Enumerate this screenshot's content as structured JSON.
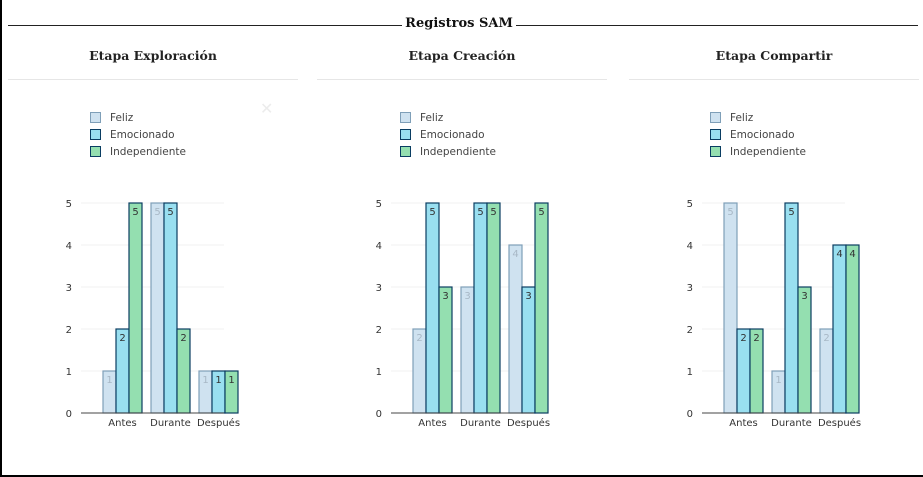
{
  "title": "Registros SAM",
  "close_icon": "close-icon",
  "legend": [
    {
      "name": "Feliz",
      "fill": "#cfe2f0",
      "stroke": "#7f9fb8"
    },
    {
      "name": "Emocionado",
      "fill": "#99dff0",
      "stroke": "#0a3d62"
    },
    {
      "name": "Independiente",
      "fill": "#94dfb0",
      "stroke": "#0a3d62"
    }
  ],
  "label_colors": [
    "#a8b8c6",
    "#333333",
    "#333333"
  ],
  "panels": [
    {
      "title": "Etapa Exploración"
    },
    {
      "title": "Etapa Creación"
    },
    {
      "title": "Etapa Compartir"
    }
  ],
  "chart_data": [
    {
      "type": "bar",
      "title": "Etapa Exploración",
      "categories": [
        "Antes",
        "Durante",
        "Después"
      ],
      "series": [
        {
          "name": "Feliz",
          "values": [
            1,
            5,
            1
          ]
        },
        {
          "name": "Emocionado",
          "values": [
            2,
            5,
            1
          ]
        },
        {
          "name": "Independiente",
          "values": [
            5,
            2,
            1
          ]
        }
      ],
      "yticks": [
        "0",
        "1",
        "2",
        "3",
        "4",
        "5"
      ],
      "ylim": [
        0,
        5
      ],
      "legend": "top-left"
    },
    {
      "type": "bar",
      "title": "Etapa Creación",
      "categories": [
        "Antes",
        "Durante",
        "Después"
      ],
      "series": [
        {
          "name": "Feliz",
          "values": [
            2,
            3,
            4
          ]
        },
        {
          "name": "Emocionado",
          "values": [
            5,
            5,
            3
          ]
        },
        {
          "name": "Independiente",
          "values": [
            3,
            5,
            5
          ]
        }
      ],
      "yticks": [
        "0",
        "1",
        "2",
        "3",
        "4",
        "5"
      ],
      "ylim": [
        0,
        5
      ],
      "legend": "top-left"
    },
    {
      "type": "bar",
      "title": "Etapa Compartir",
      "categories": [
        "Antes",
        "Durante",
        "Después"
      ],
      "series": [
        {
          "name": "Feliz",
          "values": [
            5,
            1,
            2
          ]
        },
        {
          "name": "Emocionado",
          "values": [
            2,
            5,
            4
          ]
        },
        {
          "name": "Independiente",
          "values": [
            2,
            3,
            4
          ]
        }
      ],
      "yticks": [
        "0",
        "1",
        "2",
        "3",
        "4",
        "5"
      ],
      "ylim": [
        0,
        5
      ],
      "legend": "top-left"
    }
  ]
}
